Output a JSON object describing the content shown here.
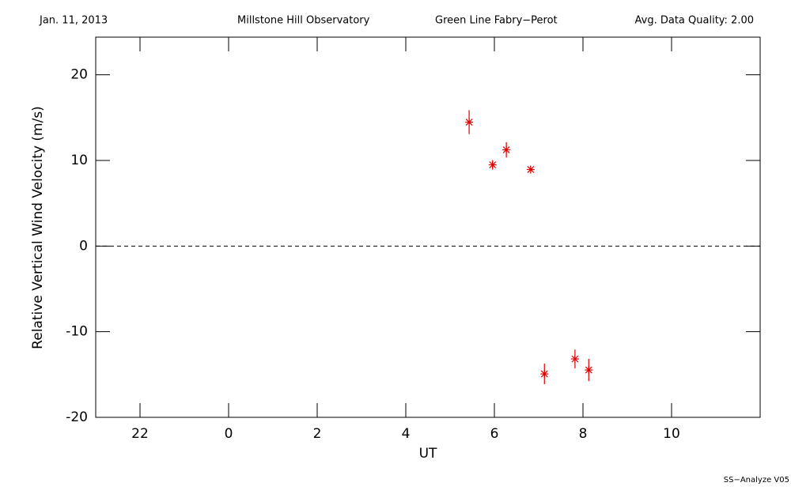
{
  "chart_data": {
    "type": "scatter",
    "header": [
      "Jan. 11, 2013",
      "Millstone Hill Observatory",
      "Green Line Fabry−Perot",
      "Avg. Data Quality: 2.00"
    ],
    "footer": "SS−Analyze V05",
    "x_label": "UT",
    "y_label": "Relative Vertical Wind Velocity (m/s)",
    "xlim": [
      -3,
      12
    ],
    "xticks": [
      {
        "value": -2,
        "label": "22"
      },
      0,
      2,
      4,
      6,
      8,
      10
    ],
    "ylim": [
      -20,
      24.4
    ],
    "yticks": [
      -20,
      -10,
      0,
      10,
      20
    ],
    "reference_line": 0,
    "series": [
      {
        "color": "#e00000",
        "x": [
          5.43,
          5.96,
          6.27,
          6.82,
          7.13,
          7.82,
          8.13
        ],
        "values": [
          14.47,
          9.49,
          11.24,
          8.94,
          -14.93,
          -13.18,
          -14.47
        ],
        "errors": [
          1.4,
          0.55,
          0.9,
          0.45,
          1.2,
          1.1,
          1.3
        ]
      }
    ]
  }
}
